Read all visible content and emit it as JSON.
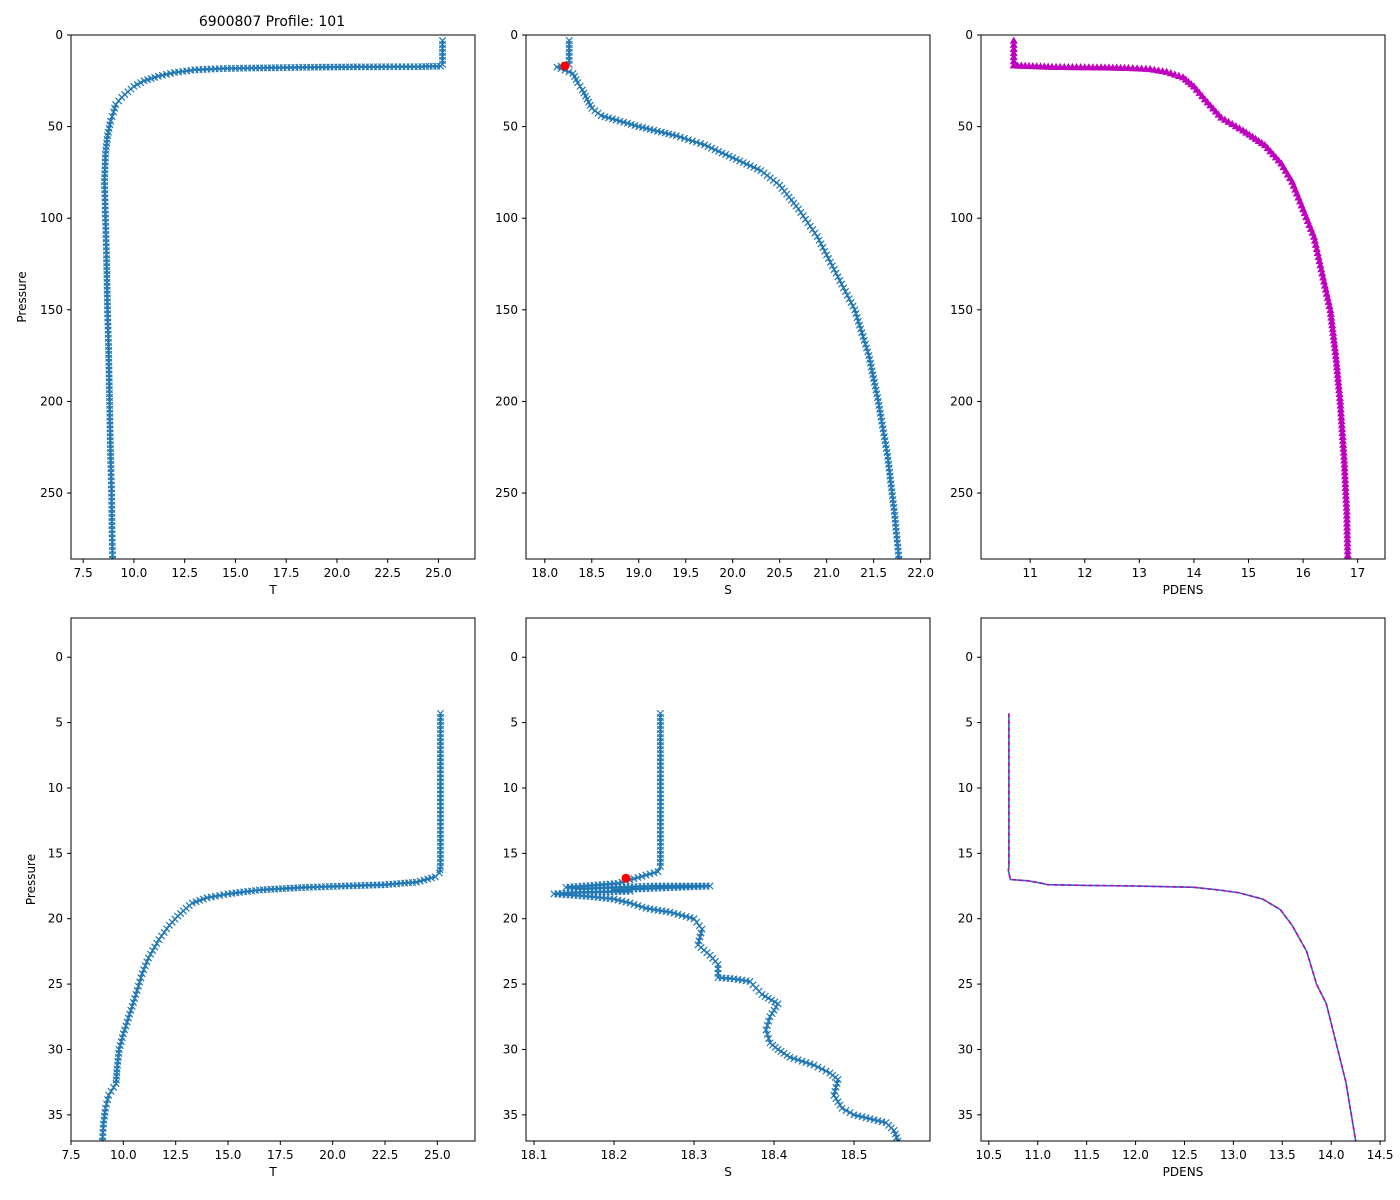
{
  "figure_title": "6900807 Profile: 101",
  "colors": {
    "series": "#1f77b4",
    "pdens": "#bf00bf",
    "highlight": "#ff0000",
    "frame": "#000000"
  },
  "chart_data": [
    {
      "type": "line",
      "panel": "top-left",
      "title": "6900807 Profile: 101",
      "xlabel": "T",
      "ylabel": "Pressure",
      "xlim": [
        6.9,
        26.8
      ],
      "ylim": [
        286,
        0
      ],
      "y_inverted": true,
      "xticks": [
        7.5,
        10.0,
        12.5,
        15.0,
        17.5,
        20.0,
        22.5,
        25.0
      ],
      "xtick_labels": [
        "7.5",
        "10.0",
        "12.5",
        "15.0",
        "17.5",
        "20.0",
        "22.5",
        "25.0"
      ],
      "yticks": [
        0,
        50,
        100,
        150,
        200,
        250
      ],
      "ytick_labels": [
        "0",
        "50",
        "100",
        "150",
        "200",
        "250"
      ],
      "marker": "x",
      "series": [
        {
          "name": "T",
          "x": [
            25.2,
            25.2,
            25.1,
            24.0,
            21.0,
            18.7,
            16.0,
            14.4,
            13.0,
            12.0,
            11.2,
            10.5,
            10.0,
            9.7,
            9.4,
            9.1,
            9.0,
            8.85,
            8.7,
            8.6,
            8.55,
            8.6,
            8.65,
            8.7,
            8.75,
            8.8,
            8.85,
            8.9,
            8.92,
            8.95
          ],
          "y": [
            3,
            16,
            17,
            17.3,
            17.4,
            17.6,
            18,
            18.3,
            19,
            20.5,
            22.5,
            25,
            28,
            31,
            34,
            38,
            42,
            47,
            55,
            65,
            80,
            100,
            120,
            150,
            170,
            200,
            230,
            250,
            270,
            286
          ]
        }
      ]
    },
    {
      "type": "line",
      "panel": "top-middle",
      "xlabel": "S",
      "ylabel": "",
      "xlim": [
        17.8,
        22.1
      ],
      "ylim": [
        286,
        0
      ],
      "y_inverted": true,
      "xticks": [
        18.0,
        18.5,
        19.0,
        19.5,
        20.0,
        20.5,
        21.0,
        21.5,
        22.0
      ],
      "xtick_labels": [
        "18.0",
        "18.5",
        "19.0",
        "19.5",
        "20.0",
        "20.5",
        "21.0",
        "21.5",
        "22.0"
      ],
      "yticks": [
        0,
        50,
        100,
        150,
        200,
        250
      ],
      "ytick_labels": [
        "0",
        "50",
        "100",
        "150",
        "200",
        "250"
      ],
      "marker": "x",
      "series": [
        {
          "name": "S",
          "x": [
            18.26,
            18.26,
            18.13,
            18.3,
            18.35,
            18.4,
            18.45,
            18.5,
            18.6,
            18.8,
            19.0,
            19.4,
            19.7,
            20.0,
            20.3,
            20.5,
            20.7,
            20.9,
            21.1,
            21.3,
            21.45,
            21.55,
            21.65,
            21.72,
            21.77
          ],
          "y": [
            3,
            16,
            17.5,
            21,
            26,
            30,
            35,
            40,
            44,
            47,
            50,
            55,
            60,
            67,
            74,
            82,
            95,
            110,
            130,
            150,
            175,
            200,
            230,
            260,
            286
          ]
        }
      ],
      "highlight_point": {
        "x": 18.215,
        "y": 16.9
      }
    },
    {
      "type": "line",
      "panel": "top-right",
      "xlabel": "PDENS",
      "ylabel": "",
      "xlim": [
        10.1,
        17.5
      ],
      "ylim": [
        286,
        0
      ],
      "y_inverted": true,
      "xticks": [
        11,
        12,
        13,
        14,
        15,
        16,
        17
      ],
      "xtick_labels": [
        "11",
        "12",
        "13",
        "14",
        "15",
        "16",
        "17"
      ],
      "yticks": [
        0,
        50,
        100,
        150,
        200,
        250
      ],
      "ytick_labels": [
        "0",
        "50",
        "100",
        "150",
        "200",
        "250"
      ],
      "marker": "^",
      "series": [
        {
          "name": "PDENS",
          "x": [
            10.7,
            10.7,
            11.4,
            12.3,
            12.8,
            13.2,
            13.5,
            13.8,
            14.0,
            14.2,
            14.5,
            14.9,
            15.3,
            15.6,
            15.8,
            16.0,
            16.2,
            16.35,
            16.5,
            16.6,
            16.68,
            16.75,
            16.8,
            16.82
          ],
          "y": [
            3,
            16.5,
            17.3,
            17.6,
            17.9,
            18.5,
            20,
            23,
            28,
            35,
            45,
            52,
            60,
            70,
            80,
            95,
            110,
            130,
            150,
            175,
            200,
            230,
            260,
            286
          ]
        }
      ]
    },
    {
      "type": "line",
      "panel": "bottom-left",
      "xlabel": "T",
      "ylabel": "Pressure",
      "xlim": [
        7.5,
        26.8
      ],
      "ylim": [
        37,
        -3
      ],
      "y_inverted": true,
      "xticks": [
        7.5,
        10.0,
        12.5,
        15.0,
        17.5,
        20.0,
        22.5,
        25.0
      ],
      "xtick_labels": [
        "7.5",
        "10.0",
        "12.5",
        "15.0",
        "17.5",
        "20.0",
        "22.5",
        "25.0"
      ],
      "yticks": [
        0,
        5,
        10,
        15,
        20,
        25,
        30,
        35
      ],
      "ytick_labels": [
        "0",
        "5",
        "10",
        "15",
        "20",
        "25",
        "30",
        "35"
      ],
      "marker": "x",
      "series": [
        {
          "name": "T",
          "x": [
            25.15,
            25.15,
            25.1,
            24.9,
            24.0,
            22.5,
            18.7,
            16.5,
            15.0,
            14.0,
            13.3,
            13.0,
            12.6,
            12.2,
            11.7,
            11.2,
            10.9,
            10.6,
            10.3,
            10.0,
            9.8,
            9.7,
            9.65,
            9.3,
            9.15,
            9.05,
            9.0
          ],
          "y": [
            4.3,
            16.0,
            16.5,
            16.8,
            17.2,
            17.4,
            17.6,
            17.8,
            18.1,
            18.4,
            18.8,
            19.2,
            19.8,
            20.5,
            21.6,
            23.0,
            24.2,
            25.8,
            27.3,
            28.8,
            30.0,
            31.5,
            32.6,
            33.5,
            34.5,
            35.7,
            37.0
          ]
        }
      ]
    },
    {
      "type": "line",
      "panel": "bottom-middle",
      "xlabel": "S",
      "ylabel": "",
      "xlim": [
        18.09,
        18.595
      ],
      "ylim": [
        37,
        -3
      ],
      "y_inverted": true,
      "xticks": [
        18.1,
        18.2,
        18.3,
        18.4,
        18.5
      ],
      "xtick_labels": [
        "18.1",
        "18.2",
        "18.3",
        "18.4",
        "18.5"
      ],
      "yticks": [
        0,
        5,
        10,
        15,
        20,
        25,
        30,
        35
      ],
      "ytick_labels": [
        "0",
        "5",
        "10",
        "15",
        "20",
        "25",
        "30",
        "35"
      ],
      "marker": "x",
      "series": [
        {
          "name": "S",
          "x": [
            18.258,
            18.258,
            18.255,
            18.205,
            18.14,
            18.16,
            18.25,
            18.32,
            18.2,
            18.22,
            18.15,
            18.125,
            18.17,
            18.2,
            18.22,
            18.24,
            18.27,
            18.3,
            18.31,
            18.305,
            18.32,
            18.33,
            18.33,
            18.35,
            18.37,
            18.385,
            18.405,
            18.395,
            18.39,
            18.395,
            18.405,
            18.42,
            18.45,
            18.47,
            18.48,
            18.475,
            18.485,
            18.5,
            18.54,
            18.55,
            18.555
          ],
          "y": [
            4.3,
            16.0,
            16.4,
            17.3,
            17.6,
            17.7,
            17.5,
            17.5,
            17.8,
            17.9,
            18.0,
            18.1,
            18.3,
            18.5,
            18.8,
            19.2,
            19.5,
            20.0,
            20.8,
            22.0,
            22.8,
            23.5,
            24.5,
            24.6,
            24.8,
            25.8,
            26.5,
            27.5,
            28.5,
            29.5,
            30.0,
            30.6,
            31.2,
            31.8,
            32.3,
            33.5,
            34.5,
            35.0,
            35.6,
            36.2,
            37.0
          ]
        }
      ],
      "highlight_point": {
        "x": 18.215,
        "y": 16.9
      }
    },
    {
      "type": "line",
      "panel": "bottom-right",
      "xlabel": "PDENS",
      "ylabel": "",
      "xlim": [
        10.42,
        14.55
      ],
      "ylim": [
        37,
        -3
      ],
      "y_inverted": true,
      "xticks": [
        10.5,
        11.0,
        11.5,
        12.0,
        12.5,
        13.0,
        13.5,
        14.0,
        14.5
      ],
      "xtick_labels": [
        "10.5",
        "11.0",
        "11.5",
        "12.0",
        "12.5",
        "13.0",
        "13.5",
        "14.0",
        "14.5"
      ],
      "yticks": [
        0,
        5,
        10,
        15,
        20,
        25,
        30,
        35
      ],
      "ytick_labels": [
        "0",
        "5",
        "10",
        "15",
        "20",
        "25",
        "30",
        "35"
      ],
      "marker": "none",
      "line_style": "solid blue with dashed magenta overlay",
      "series": [
        {
          "name": "PDENS",
          "x": [
            10.705,
            10.705,
            10.7,
            10.72,
            10.9,
            11.05,
            11.1,
            11.5,
            12.0,
            12.6,
            12.85,
            13.05,
            13.3,
            13.48,
            13.6,
            13.75,
            13.85,
            13.95,
            14.05,
            14.15,
            14.25
          ],
          "y": [
            4.3,
            16.0,
            16.3,
            17.0,
            17.1,
            17.3,
            17.4,
            17.45,
            17.5,
            17.6,
            17.8,
            18.0,
            18.5,
            19.3,
            20.5,
            22.5,
            25.0,
            26.5,
            29.5,
            32.5,
            37.0
          ]
        }
      ]
    }
  ]
}
